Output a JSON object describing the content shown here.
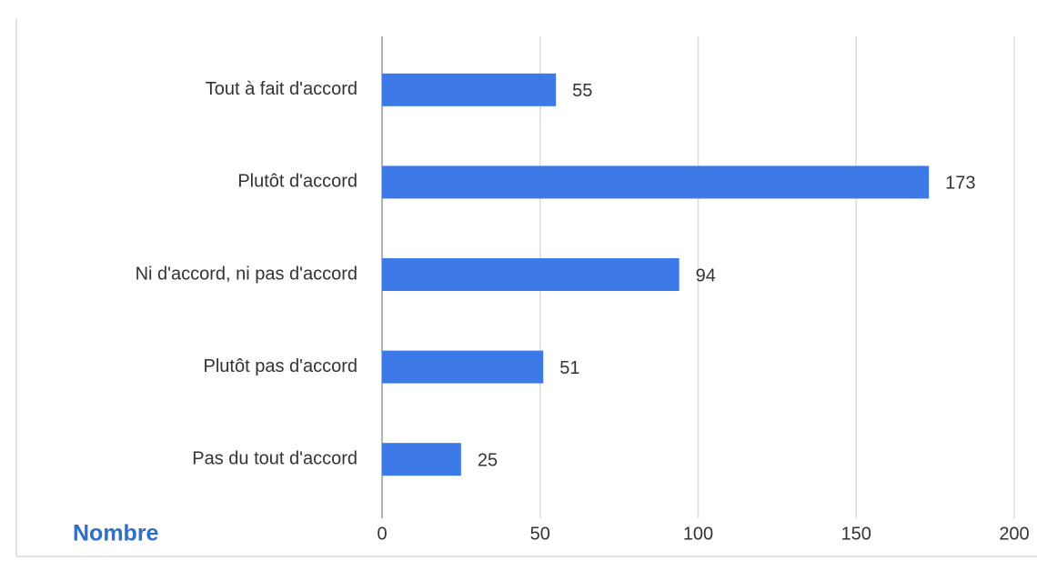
{
  "chart_data": {
    "type": "bar",
    "orientation": "horizontal",
    "xlabel": "Nombre",
    "categories": [
      "Tout à fait d'accord",
      "Plutôt d'accord",
      "Ni d'accord, ni pas d'accord",
      "Plutôt pas d'accord",
      "Pas du tout d'accord"
    ],
    "values": [
      55,
      173,
      94,
      51,
      25
    ],
    "color": "#3d7ae8",
    "xlim": [
      0,
      200
    ],
    "xticks": [
      0,
      50,
      100,
      150,
      200
    ],
    "grid": true
  }
}
